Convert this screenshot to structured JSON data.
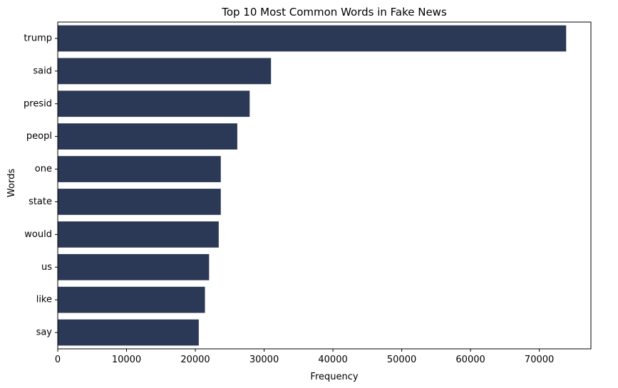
{
  "chart_data": {
    "type": "bar",
    "orientation": "horizontal",
    "title": "Top 10 Most Common Words in Fake News",
    "xlabel": "Frequency",
    "ylabel": "Words",
    "categories": [
      "trump",
      "said",
      "presid",
      "peopl",
      "one",
      "state",
      "would",
      "us",
      "like",
      "say"
    ],
    "values": [
      73900,
      31000,
      27900,
      26100,
      23700,
      23700,
      23400,
      22000,
      21400,
      20500
    ],
    "xlim": [
      0,
      77500
    ],
    "xticks": [
      0,
      10000,
      20000,
      30000,
      40000,
      50000,
      60000,
      70000
    ],
    "grid": false,
    "bar_color": "#2b3856"
  }
}
